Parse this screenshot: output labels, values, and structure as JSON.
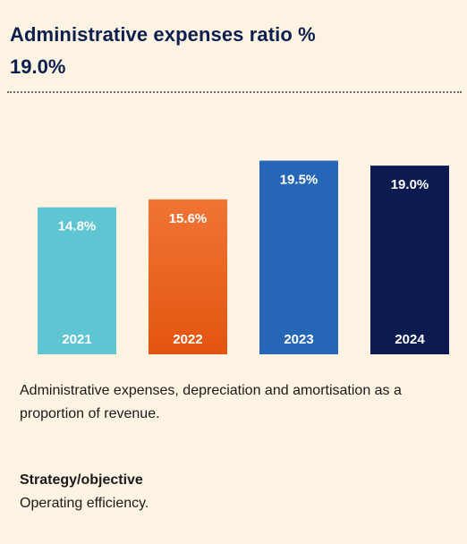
{
  "header": {
    "title": "Administrative expenses ratio %",
    "headline_value": "19.0%"
  },
  "chart_data": {
    "type": "bar",
    "title": "Administrative expenses ratio %",
    "categories": [
      "2021",
      "2022",
      "2023",
      "2024"
    ],
    "values": [
      14.8,
      15.6,
      19.5,
      19.0
    ],
    "value_labels": [
      "14.8%",
      "15.6%",
      "19.5%",
      "19.0%"
    ],
    "colors": [
      "#5fc5d2",
      "#ec6a2a",
      "#2566b6",
      "#0b1a4f"
    ],
    "xlabel": "",
    "ylabel": "",
    "ylim": [
      0,
      20
    ],
    "grid": false,
    "legend": "none"
  },
  "description": "Administrative expenses, depreciation and amortisation as a proportion of revenue.",
  "strategy": {
    "label": "Strategy/objective",
    "value": "Operating efficiency."
  }
}
